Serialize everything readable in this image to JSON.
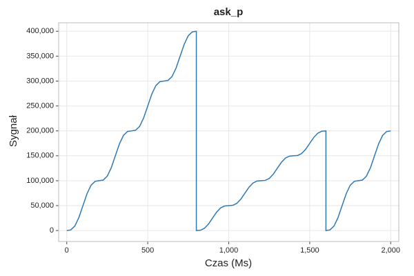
{
  "chart_data": {
    "type": "line",
    "title": "ask_p",
    "x_label": "Czas (Ms)",
    "y_label": "Sygnał",
    "grid": true,
    "xlim": [
      -50,
      2050
    ],
    "ylim": [
      -22000,
      417000
    ],
    "xticks": [
      0,
      500,
      {
        "value": 1000,
        "label": "1,000"
      },
      {
        "value": 1500,
        "label": "1,500"
      },
      {
        "value": 2000,
        "label": "2,000"
      }
    ],
    "yticks": [
      0,
      {
        "value": 50000,
        "label": "50,000"
      },
      {
        "value": 100000,
        "label": "100,000"
      },
      {
        "value": 150000,
        "label": "150,000"
      },
      {
        "value": 200000,
        "label": "200,000"
      },
      {
        "value": 250000,
        "label": "250,000"
      },
      {
        "value": 300000,
        "label": "300,000"
      },
      {
        "value": 350000,
        "label": "350,000"
      },
      {
        "value": 400000,
        "label": "400,000"
      }
    ],
    "x": [
      0,
      25,
      50,
      75,
      100,
      125,
      150,
      175,
      200,
      225,
      250,
      275,
      300,
      325,
      350,
      375,
      400,
      425,
      450,
      475,
      500,
      525,
      550,
      575,
      600,
      625,
      650,
      675,
      700,
      725,
      750,
      775,
      800,
      800,
      825,
      850,
      875,
      900,
      925,
      950,
      975,
      1000,
      1025,
      1050,
      1075,
      1100,
      1125,
      1150,
      1175,
      1200,
      1225,
      1250,
      1275,
      1300,
      1325,
      1350,
      1375,
      1400,
      1425,
      1450,
      1475,
      1500,
      1525,
      1550,
      1575,
      1600,
      1600,
      1625,
      1650,
      1675,
      1700,
      1725,
      1750,
      1775,
      1800,
      1825,
      1850,
      1875,
      1900,
      1925,
      1950,
      1975,
      2000
    ],
    "series": [
      {
        "name": "ask_p",
        "color": "#2e78b4",
        "values": [
          0,
          1250,
          9080,
          26250,
          50000,
          73750,
          90920,
          98750,
          100000,
          101250,
          109080,
          126250,
          150000,
          173750,
          190920,
          198750,
          200000,
          201250,
          209080,
          226250,
          250000,
          273750,
          290920,
          298750,
          300000,
          301250,
          309080,
          326250,
          350000,
          373750,
          390920,
          398750,
          400000,
          0,
          625,
          4540,
          13125,
          25000,
          36875,
          45460,
          49375,
          50000,
          50625,
          54540,
          63125,
          75000,
          86875,
          95460,
          99375,
          100000,
          100625,
          104540,
          113125,
          125000,
          136875,
          145460,
          149375,
          150000,
          150625,
          154540,
          163125,
          175000,
          186875,
          195460,
          199375,
          200000,
          0,
          1250,
          9080,
          26250,
          50000,
          73750,
          90920,
          98750,
          100000,
          101250,
          109080,
          126250,
          150000,
          173750,
          190920,
          198750,
          200000
        ]
      }
    ]
  }
}
